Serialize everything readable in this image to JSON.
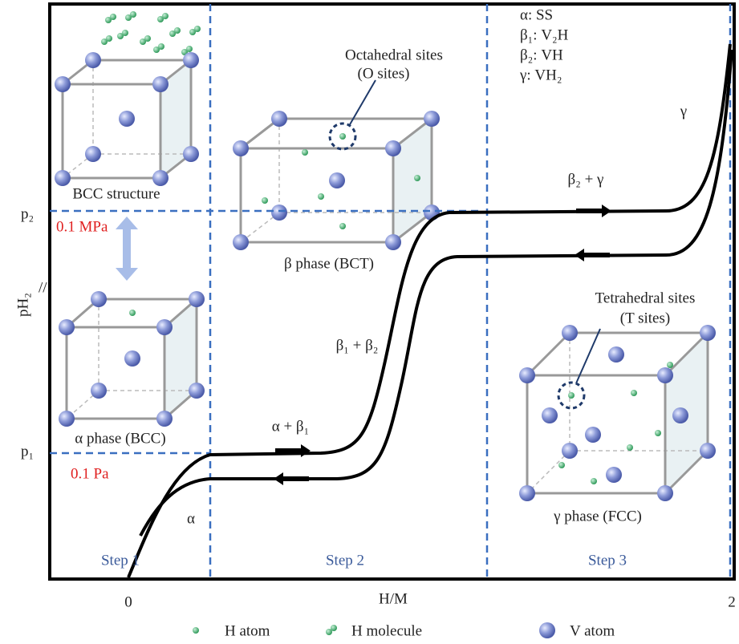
{
  "phases": [
    "α: SS",
    "β₁: V₂H",
    "β₂: VH",
    "γ: VH₂"
  ],
  "octahedral": {
    "title": "Octahedral sites",
    "subtitle": "(O sites)"
  },
  "tetrahedral": {
    "title": "Tetrahedral sites",
    "subtitle": "(T sites)"
  },
  "structures": [
    "BCC structure",
    "β phase (BCT)",
    "α phase (BCC)",
    "γ phase (FCC)"
  ],
  "regions": [
    "α + β₁",
    "β₁ + β₂",
    "β₂ + γ",
    "α",
    "γ"
  ],
  "axis": {
    "y_label": "pH₂",
    "p1": "p₁",
    "p2": "p₂",
    "p1_value": "0.1 Pa",
    "p2_value": "0.1 MPa",
    "x_label": "H/M",
    "x_start": "0",
    "x_end": "2"
  },
  "steps": [
    "Step 1",
    "Step 2",
    "Step 3"
  ],
  "legend": [
    "H atom",
    "H molecule",
    "V atom"
  ]
}
